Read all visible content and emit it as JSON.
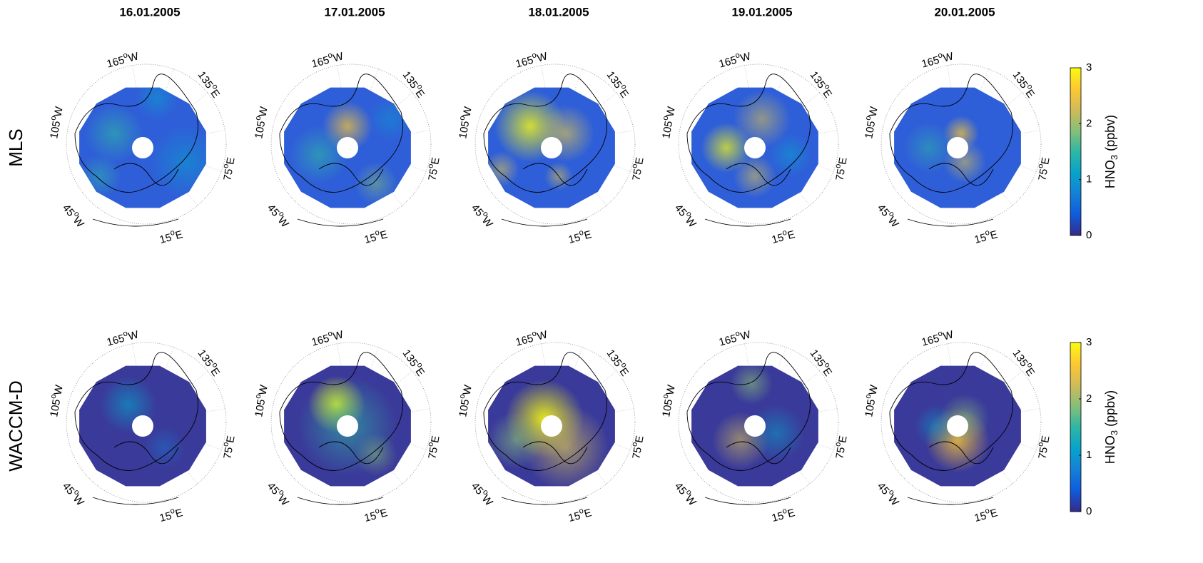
{
  "columns": [
    "16.01.2005",
    "17.01.2005",
    "18.01.2005",
    "19.01.2005",
    "20.01.2005"
  ],
  "rows": [
    "MLS",
    "WACCM-D"
  ],
  "lon_labels": [
    {
      "deg": "165",
      "sup": "o",
      "hemi": "W"
    },
    {
      "deg": "135",
      "sup": "o",
      "hemi": "E"
    },
    {
      "deg": "105",
      "sup": "o",
      "hemi": "W"
    },
    {
      "deg": "75",
      "sup": "o",
      "hemi": "E"
    },
    {
      "deg": "45",
      "sup": "o",
      "hemi": "W"
    },
    {
      "deg": "15",
      "sup": "o",
      "hemi": "E"
    }
  ],
  "colorbar": {
    "label": {
      "main": "HNO",
      "sub": "3",
      "unit": "(ppbv)"
    },
    "lim": [
      0,
      3
    ],
    "ticks": [
      0,
      1,
      2,
      3
    ],
    "colormap": [
      "#352a87",
      "#0f5cdd",
      "#1481d6",
      "#06a4ca",
      "#2eb7a4",
      "#87bf77",
      "#d1bb59",
      "#fec832",
      "#f9fb0e"
    ]
  }
}
